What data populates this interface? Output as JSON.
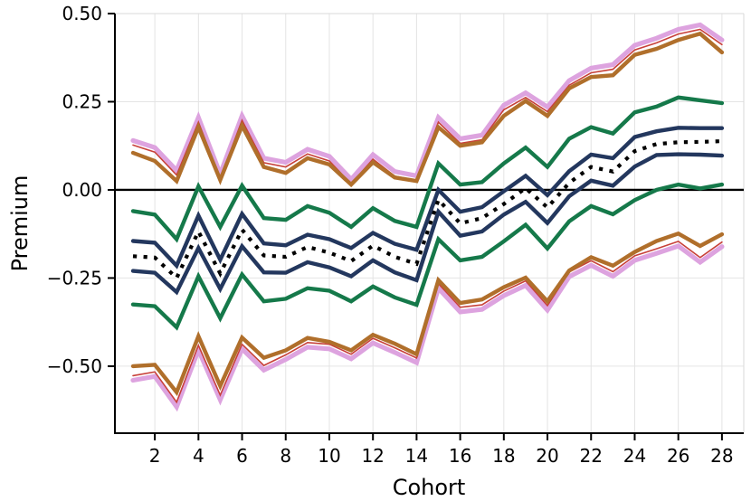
{
  "chart_data": {
    "type": "line",
    "title": "",
    "xlabel": "Cohort",
    "ylabel": "Premium",
    "legend": "none",
    "grid": true,
    "background": "#ffffff",
    "grid_color": "#e4e4e4",
    "frame_color": "#d9d9d9",
    "spine_color": "#000000",
    "zero_line": {
      "y": 0.0,
      "color": "#000000",
      "width": 2.4
    },
    "xlim": [
      0.17,
      29.0
    ],
    "ylim": [
      -0.69,
      0.5
    ],
    "x": [
      1,
      2,
      3,
      4,
      5,
      6,
      7,
      8,
      9,
      10,
      11,
      12,
      13,
      14,
      15,
      16,
      17,
      18,
      19,
      20,
      21,
      22,
      23,
      24,
      25,
      26,
      27,
      28
    ],
    "xticks": [
      2,
      4,
      6,
      8,
      10,
      12,
      14,
      16,
      18,
      20,
      22,
      24,
      26,
      28
    ],
    "yticks": [
      {
        "v": 0.5,
        "label": "0.50"
      },
      {
        "v": 0.25,
        "label": "0.25"
      },
      {
        "v": 0.0,
        "label": "0.00"
      },
      {
        "v": -0.25,
        "label": "−0.25"
      },
      {
        "v": -0.5,
        "label": "−0.50"
      }
    ],
    "series": [
      {
        "name": "pink-upper",
        "color": "#dda3df",
        "width": 5.2,
        "dash": "",
        "values": [
          0.14,
          0.12,
          0.055,
          0.205,
          0.045,
          0.21,
          0.09,
          0.078,
          0.115,
          0.095,
          0.03,
          0.1,
          0.052,
          0.04,
          0.205,
          0.145,
          0.155,
          0.24,
          0.275,
          0.235,
          0.31,
          0.345,
          0.355,
          0.41,
          0.43,
          0.455,
          0.468,
          0.425
        ]
      },
      {
        "name": "pink-lower",
        "color": "#dda3df",
        "width": 5.2,
        "dash": "",
        "values": [
          -0.54,
          -0.529,
          -0.615,
          -0.454,
          -0.595,
          -0.451,
          -0.511,
          -0.481,
          -0.446,
          -0.451,
          -0.479,
          -0.434,
          -0.461,
          -0.49,
          -0.279,
          -0.346,
          -0.339,
          -0.3,
          -0.271,
          -0.341,
          -0.246,
          -0.214,
          -0.245,
          -0.2,
          -0.18,
          -0.159,
          -0.205,
          -0.161
        ]
      },
      {
        "name": "red-upper",
        "color": "#c8403a",
        "width": 1.6,
        "dash": "",
        "values": [
          0.127,
          0.107,
          0.042,
          0.192,
          0.032,
          0.197,
          0.077,
          0.065,
          0.102,
          0.082,
          0.017,
          0.087,
          0.039,
          0.027,
          0.192,
          0.132,
          0.142,
          0.227,
          0.262,
          0.222,
          0.297,
          0.332,
          0.342,
          0.397,
          0.417,
          0.442,
          0.455,
          0.412
        ]
      },
      {
        "name": "red-lower",
        "color": "#c8403a",
        "width": 1.6,
        "dash": "",
        "values": [
          -0.527,
          -0.516,
          -0.602,
          -0.441,
          -0.582,
          -0.438,
          -0.498,
          -0.468,
          -0.433,
          -0.438,
          -0.466,
          -0.421,
          -0.448,
          -0.477,
          -0.266,
          -0.333,
          -0.326,
          -0.287,
          -0.258,
          -0.328,
          -0.233,
          -0.201,
          -0.232,
          -0.187,
          -0.167,
          -0.146,
          -0.192,
          -0.148
        ]
      },
      {
        "name": "brown-upper",
        "color": "#b06f2b",
        "width": 4.4,
        "dash": "",
        "values": [
          0.105,
          0.082,
          0.025,
          0.178,
          0.028,
          0.182,
          0.065,
          0.048,
          0.09,
          0.072,
          0.015,
          0.078,
          0.035,
          0.025,
          0.178,
          0.125,
          0.135,
          0.21,
          0.252,
          0.21,
          0.288,
          0.32,
          0.325,
          0.383,
          0.4,
          0.425,
          0.443,
          0.39
        ]
      },
      {
        "name": "brown-lower",
        "color": "#b06f2b",
        "width": 4.4,
        "dash": "",
        "values": [
          -0.5,
          -0.496,
          -0.574,
          -0.415,
          -0.556,
          -0.419,
          -0.476,
          -0.455,
          -0.42,
          -0.431,
          -0.455,
          -0.411,
          -0.436,
          -0.466,
          -0.256,
          -0.321,
          -0.311,
          -0.276,
          -0.249,
          -0.316,
          -0.229,
          -0.191,
          -0.215,
          -0.176,
          -0.145,
          -0.124,
          -0.159,
          -0.126
        ]
      },
      {
        "name": "green-upper",
        "color": "#15794a",
        "width": 4.4,
        "dash": "",
        "values": [
          -0.06,
          -0.07,
          -0.14,
          0.01,
          -0.105,
          0.012,
          -0.08,
          -0.085,
          -0.046,
          -0.065,
          -0.105,
          -0.052,
          -0.088,
          -0.105,
          0.075,
          0.015,
          0.022,
          0.075,
          0.12,
          0.065,
          0.145,
          0.178,
          0.16,
          0.22,
          0.236,
          0.262,
          0.254,
          0.246
        ]
      },
      {
        "name": "green-lower",
        "color": "#15794a",
        "width": 4.4,
        "dash": "",
        "values": [
          -0.325,
          -0.33,
          -0.39,
          -0.245,
          -0.364,
          -0.24,
          -0.316,
          -0.309,
          -0.279,
          -0.286,
          -0.316,
          -0.274,
          -0.305,
          -0.326,
          -0.14,
          -0.2,
          -0.19,
          -0.146,
          -0.099,
          -0.166,
          -0.089,
          -0.046,
          -0.069,
          -0.029,
          0.0,
          0.015,
          0.004,
          0.015
        ]
      },
      {
        "name": "navy-upper",
        "color": "#23375e",
        "width": 4.4,
        "dash": "",
        "values": [
          -0.145,
          -0.15,
          -0.215,
          -0.073,
          -0.198,
          -0.068,
          -0.152,
          -0.157,
          -0.127,
          -0.14,
          -0.165,
          -0.122,
          -0.153,
          -0.17,
          0.0,
          -0.062,
          -0.049,
          -0.004,
          0.04,
          -0.015,
          0.053,
          0.1,
          0.09,
          0.15,
          0.166,
          0.176,
          0.175,
          0.175
        ]
      },
      {
        "name": "navy-lower",
        "color": "#23375e",
        "width": 4.4,
        "dash": "",
        "values": [
          -0.23,
          -0.235,
          -0.29,
          -0.165,
          -0.281,
          -0.16,
          -0.234,
          -0.235,
          -0.205,
          -0.22,
          -0.245,
          -0.2,
          -0.234,
          -0.256,
          -0.062,
          -0.13,
          -0.118,
          -0.07,
          -0.034,
          -0.094,
          -0.018,
          0.026,
          0.012,
          0.066,
          0.099,
          0.101,
          0.1,
          0.097
        ]
      },
      {
        "name": "median-dotted",
        "color": "#000000",
        "width": 4.2,
        "dash": "4.2 7.4",
        "values": [
          -0.188,
          -0.192,
          -0.25,
          -0.118,
          -0.237,
          -0.113,
          -0.186,
          -0.19,
          -0.162,
          -0.178,
          -0.202,
          -0.158,
          -0.19,
          -0.21,
          -0.028,
          -0.095,
          -0.08,
          -0.04,
          0.005,
          -0.05,
          0.02,
          0.065,
          0.052,
          0.11,
          0.13,
          0.135,
          0.136,
          0.138
        ]
      }
    ]
  }
}
